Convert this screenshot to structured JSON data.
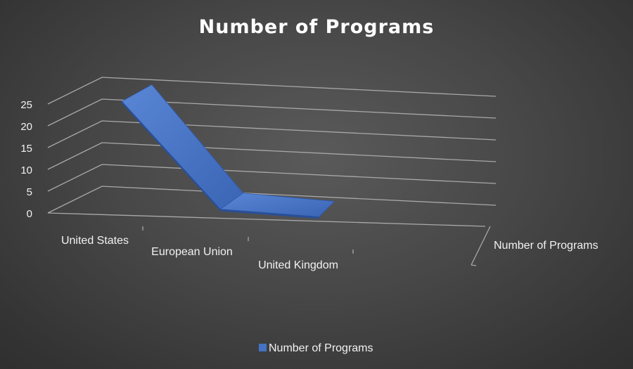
{
  "chart_data": {
    "type": "line",
    "subtype": "3d-line",
    "title": "Number of Programs",
    "categories": [
      "United States",
      "European Union",
      "United Kingdom"
    ],
    "series": [
      {
        "name": "Number of Programs",
        "values": [
          25,
          1,
          0
        ],
        "color": "#4472c4"
      }
    ],
    "depth_label": "Number of Programs",
    "yticks": [
      "0",
      "5",
      "10",
      "15",
      "20",
      "25"
    ],
    "ylim": [
      0,
      25
    ],
    "grid": true,
    "legend": {
      "position": "bottom",
      "entries": [
        "Number of Programs"
      ]
    }
  }
}
